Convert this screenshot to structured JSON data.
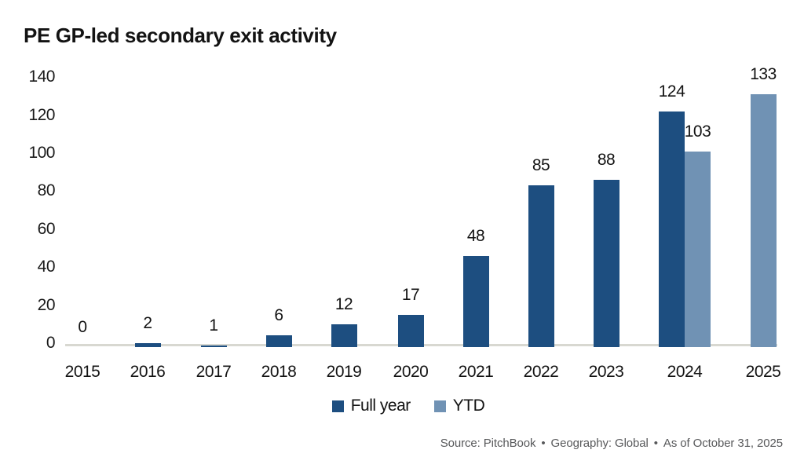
{
  "title": "PE GP-led secondary exit activity",
  "chart_data": {
    "type": "bar",
    "title": "PE GP-led secondary exit activity",
    "categories": [
      "2015",
      "2016",
      "2017",
      "2018",
      "2019",
      "2020",
      "2021",
      "2022",
      "2023",
      "2024",
      "2025"
    ],
    "series": [
      {
        "name": "Full year",
        "color": "#1d4e80",
        "values": [
          0,
          2,
          1,
          6,
          12,
          17,
          48,
          85,
          88,
          124,
          null
        ]
      },
      {
        "name": "YTD",
        "color": "#7092b4",
        "values": [
          null,
          null,
          null,
          null,
          null,
          null,
          null,
          null,
          null,
          103,
          133
        ]
      }
    ],
    "xlabel": "",
    "ylabel": "",
    "ylim": [
      0,
      140
    ],
    "yticks": [
      0,
      20,
      40,
      60,
      80,
      100,
      120,
      140
    ],
    "grid": false,
    "data_labels": true,
    "legend_position": "bottom"
  },
  "legend": {
    "items": [
      {
        "label": "Full year",
        "color": "#1d4e80"
      },
      {
        "label": "YTD",
        "color": "#7092b4"
      }
    ]
  },
  "footer": {
    "source": "Source: PitchBook",
    "geography": "Geography: Global",
    "as_of": "As of October 31, 2025",
    "separator": "•"
  }
}
